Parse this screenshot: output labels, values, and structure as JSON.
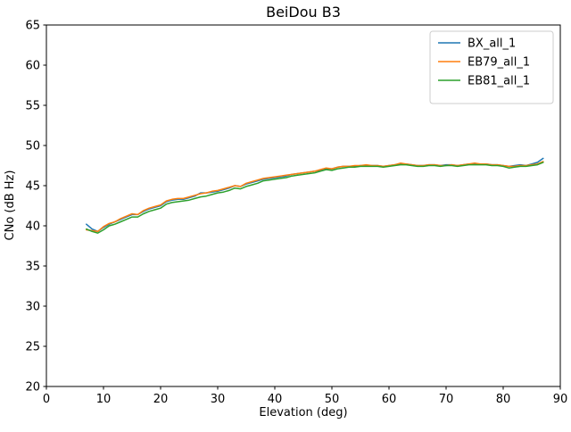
{
  "chart_data": {
    "type": "line",
    "title": "BeiDou B3",
    "xlabel": "Elevation (deg)",
    "ylabel": "CNo (dB Hz)",
    "xlim": [
      0,
      90
    ],
    "ylim": [
      20,
      65
    ],
    "x_ticks": [
      0,
      10,
      20,
      30,
      40,
      50,
      60,
      70,
      80,
      90
    ],
    "y_ticks": [
      20,
      25,
      30,
      35,
      40,
      45,
      50,
      55,
      60,
      65
    ],
    "grid": false,
    "legend_position": "upper right",
    "line_width": 1.5,
    "x": [
      7,
      8,
      9,
      10,
      11,
      12,
      13,
      14,
      15,
      16,
      17,
      18,
      19,
      20,
      21,
      22,
      23,
      24,
      25,
      26,
      27,
      28,
      29,
      30,
      31,
      32,
      33,
      34,
      35,
      36,
      37,
      38,
      39,
      40,
      41,
      42,
      43,
      44,
      45,
      46,
      47,
      48,
      49,
      50,
      51,
      52,
      53,
      54,
      55,
      56,
      57,
      58,
      59,
      60,
      61,
      62,
      63,
      64,
      65,
      66,
      67,
      68,
      69,
      70,
      71,
      72,
      73,
      74,
      75,
      76,
      77,
      78,
      79,
      80,
      81,
      82,
      83,
      84,
      85,
      86,
      87
    ],
    "series": [
      {
        "name": "BX_all_1",
        "color": "#1f77b4",
        "values": [
          40.2,
          39.6,
          39.3,
          39.8,
          40.2,
          40.5,
          40.8,
          41.1,
          41.4,
          41.4,
          41.8,
          42.1,
          42.3,
          42.5,
          43.0,
          43.2,
          43.3,
          43.3,
          43.5,
          43.7,
          44.1,
          44.1,
          44.2,
          44.3,
          44.5,
          44.7,
          45.0,
          44.9,
          45.2,
          45.4,
          45.6,
          45.8,
          45.9,
          46.0,
          46.1,
          46.2,
          46.4,
          46.5,
          46.6,
          46.7,
          46.8,
          46.9,
          47.1,
          47.1,
          47.3,
          47.4,
          47.4,
          47.4,
          47.5,
          47.5,
          47.5,
          47.5,
          47.4,
          47.5,
          47.6,
          47.7,
          47.7,
          47.6,
          47.5,
          47.5,
          47.6,
          47.6,
          47.5,
          47.6,
          47.6,
          47.5,
          47.6,
          47.7,
          47.7,
          47.7,
          47.7,
          47.6,
          47.6,
          47.5,
          47.4,
          47.5,
          47.6,
          47.5,
          47.7,
          47.9,
          48.4
        ]
      },
      {
        "name": "EB79_all_1",
        "color": "#ff7f0e",
        "values": [
          39.5,
          39.4,
          39.3,
          39.9,
          40.3,
          40.5,
          40.9,
          41.2,
          41.5,
          41.4,
          41.9,
          42.2,
          42.4,
          42.6,
          43.1,
          43.3,
          43.4,
          43.4,
          43.6,
          43.8,
          44.0,
          44.1,
          44.3,
          44.4,
          44.6,
          44.8,
          45.0,
          44.9,
          45.3,
          45.5,
          45.7,
          45.9,
          46.0,
          46.1,
          46.2,
          46.3,
          46.4,
          46.5,
          46.6,
          46.7,
          46.8,
          47.0,
          47.2,
          47.1,
          47.3,
          47.4,
          47.4,
          47.5,
          47.5,
          47.6,
          47.5,
          47.5,
          47.4,
          47.5,
          47.6,
          47.8,
          47.7,
          47.6,
          47.5,
          47.5,
          47.6,
          47.6,
          47.5,
          47.5,
          47.6,
          47.5,
          47.6,
          47.7,
          47.8,
          47.7,
          47.7,
          47.6,
          47.6,
          47.5,
          47.4,
          47.4,
          47.5,
          47.5,
          47.6,
          47.7,
          48.0
        ]
      },
      {
        "name": "EB81_all_1",
        "color": "#2ca02c",
        "values": [
          39.6,
          39.3,
          39.1,
          39.5,
          40.0,
          40.2,
          40.5,
          40.8,
          41.1,
          41.1,
          41.5,
          41.8,
          42.0,
          42.2,
          42.7,
          42.9,
          43.0,
          43.1,
          43.2,
          43.4,
          43.6,
          43.7,
          43.9,
          44.1,
          44.2,
          44.4,
          44.7,
          44.6,
          44.9,
          45.1,
          45.3,
          45.6,
          45.7,
          45.8,
          45.9,
          46.0,
          46.2,
          46.3,
          46.4,
          46.5,
          46.6,
          46.8,
          47.0,
          46.9,
          47.1,
          47.2,
          47.3,
          47.3,
          47.4,
          47.4,
          47.4,
          47.4,
          47.3,
          47.4,
          47.5,
          47.6,
          47.6,
          47.5,
          47.4,
          47.4,
          47.5,
          47.5,
          47.4,
          47.5,
          47.5,
          47.4,
          47.5,
          47.6,
          47.6,
          47.6,
          47.6,
          47.5,
          47.5,
          47.4,
          47.2,
          47.3,
          47.4,
          47.4,
          47.5,
          47.6,
          47.9
        ]
      }
    ]
  }
}
